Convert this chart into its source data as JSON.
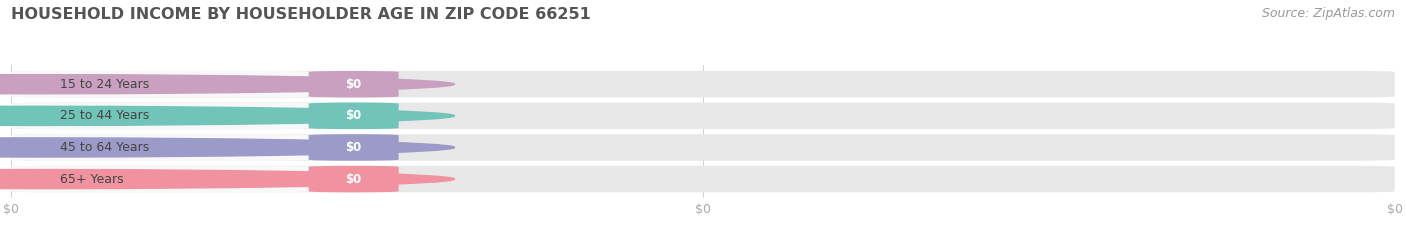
{
  "title": "HOUSEHOLD INCOME BY HOUSEHOLDER AGE IN ZIP CODE 66251",
  "source_text": "Source: ZipAtlas.com",
  "categories": [
    "15 to 24 Years",
    "25 to 44 Years",
    "45 to 64 Years",
    "65+ Years"
  ],
  "values": [
    0,
    0,
    0,
    0
  ],
  "bar_colors": [
    "#c9a0c0",
    "#70c4b8",
    "#9b9ac8",
    "#f0929f"
  ],
  "bar_bg_color": "#e8e8e8",
  "label_pill_color": "#f8f8f8",
  "tick_label_color": "#aaaaaa",
  "title_color": "#555555",
  "source_color": "#999999",
  "value_label_color": "#ffffff",
  "category_label_color": "#444444",
  "fig_bg_color": "#ffffff",
  "xtick_positions": [
    0.0,
    0.5,
    1.0
  ],
  "xtick_labels": [
    "$0",
    "$0",
    "$0"
  ],
  "title_fontsize": 11.5,
  "source_fontsize": 9,
  "tick_fontsize": 9,
  "cat_fontsize": 9,
  "val_fontsize": 8.5
}
